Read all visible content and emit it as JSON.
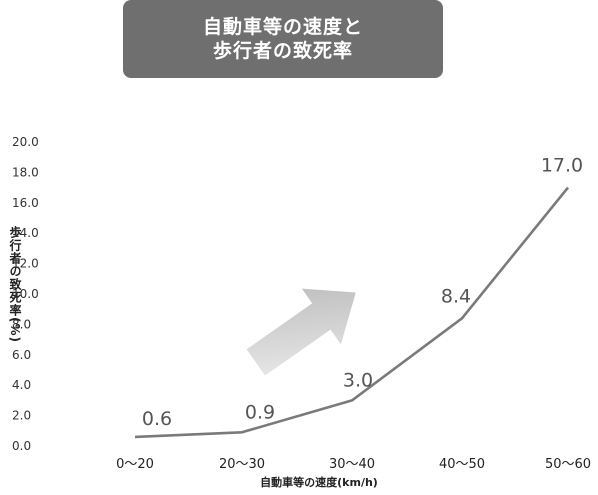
{
  "title": {
    "line1": "自動車等の速度と",
    "line2": "歩行者の致死率"
  },
  "chart_data": {
    "type": "line",
    "title": "自動車等の速度と歩行者の致死率",
    "xlabel": "自動車等の速度(km/h)",
    "ylabel": "歩行者の致死率(%)",
    "categories": [
      "0〜20",
      "20〜30",
      "30〜40",
      "40〜50",
      "50〜60"
    ],
    "values": [
      0.6,
      0.9,
      3.0,
      8.4,
      17.0
    ],
    "data_labels": [
      "0.6",
      "0.9",
      "3.0",
      "8.4",
      "17.0"
    ],
    "ylim": [
      0,
      20
    ],
    "yticks": [
      "0.0",
      "2.0",
      "4.0",
      "6.0",
      "8.0",
      "10.0",
      "12.0",
      "14.0",
      "16.0",
      "18.0",
      "20.0"
    ],
    "grid": false,
    "legend": "none",
    "line_color": "#7a7a7a"
  }
}
